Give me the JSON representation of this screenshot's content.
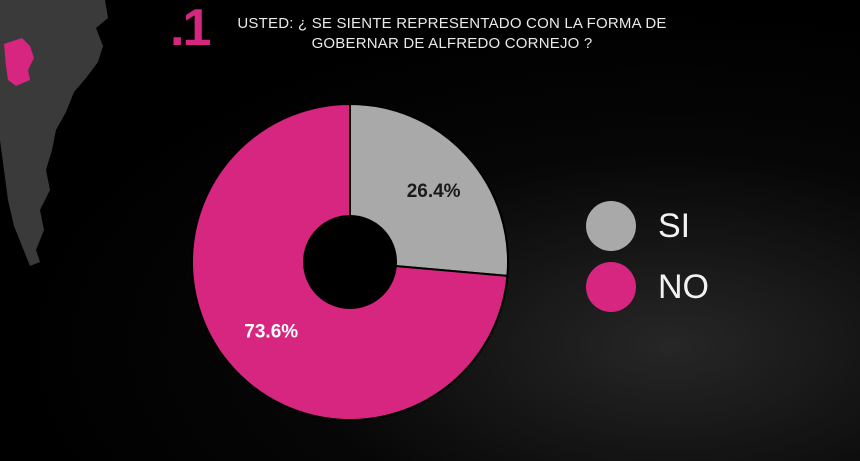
{
  "question": {
    "number": ".1",
    "line1": "USTED: ¿ SE SIENTE REPRESENTADO CON LA FORMA DE",
    "line2": "GOBERNAR DE ALFREDO CORNEJO ?"
  },
  "colors": {
    "si": "#a9a9a9",
    "no": "#d6267f",
    "accent": "#d6267f",
    "map": "#3a3a3a"
  },
  "chart_data": {
    "type": "pie",
    "donut": true,
    "title": "USTED: ¿ SE SIENTE REPRESENTADO CON LA FORMA DE GOBERNAR DE ALFREDO CORNEJO ?",
    "categories": [
      "SI",
      "NO"
    ],
    "values": [
      26.4,
      73.6
    ],
    "labels": [
      "26.4%",
      "73.6%"
    ],
    "legend_position": "right"
  },
  "legend": [
    {
      "label": "SI"
    },
    {
      "label": "NO"
    }
  ]
}
